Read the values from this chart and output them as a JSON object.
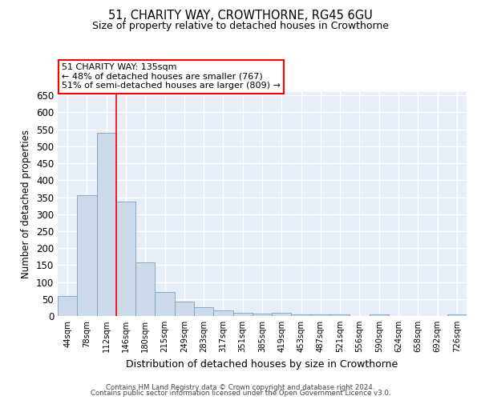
{
  "title": "51, CHARITY WAY, CROWTHORNE, RG45 6GU",
  "subtitle": "Size of property relative to detached houses in Crowthorne",
  "xlabel": "Distribution of detached houses by size in Crowthorne",
  "ylabel": "Number of detached properties",
  "bar_color": "#ccd9e8",
  "bar_edge_color": "#7aa0c4",
  "background_color": "#e8eef8",
  "categories": [
    "44sqm",
    "78sqm",
    "112sqm",
    "146sqm",
    "180sqm",
    "215sqm",
    "249sqm",
    "283sqm",
    "317sqm",
    "351sqm",
    "385sqm",
    "419sqm",
    "453sqm",
    "487sqm",
    "521sqm",
    "556sqm",
    "590sqm",
    "624sqm",
    "658sqm",
    "692sqm",
    "726sqm"
  ],
  "values": [
    58,
    355,
    540,
    338,
    157,
    70,
    42,
    25,
    16,
    10,
    8,
    9,
    5,
    5,
    4,
    0,
    5,
    0,
    0,
    0,
    5
  ],
  "property_label": "51 CHARITY WAY: 135sqm",
  "annotation_line1": "← 48% of detached houses are smaller (767)",
  "annotation_line2": "51% of semi-detached houses are larger (809) →",
  "footer1": "Contains HM Land Registry data © Crown copyright and database right 2024.",
  "footer2": "Contains public sector information licensed under the Open Government Licence v3.0.",
  "ylim": [
    0,
    660
  ],
  "yticks": [
    0,
    50,
    100,
    150,
    200,
    250,
    300,
    350,
    400,
    450,
    500,
    550,
    600,
    650
  ],
  "vline_x": 2.5
}
